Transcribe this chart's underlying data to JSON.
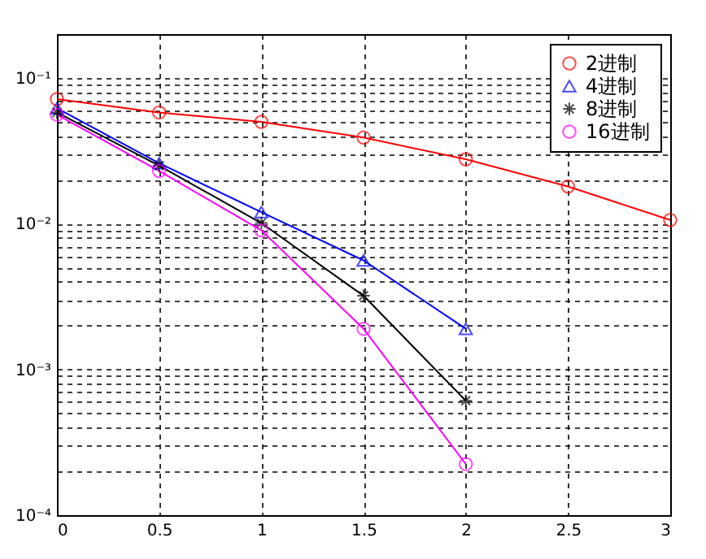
{
  "chart_data": {
    "type": "line",
    "log": "y",
    "grid": true,
    "legend": "top right",
    "line_style": "solid",
    "xlim": [
      0,
      3
    ],
    "xticks": [
      0,
      0.5,
      1,
      1.5,
      2,
      2.5,
      3
    ],
    "ylim": [
      0.0001,
      0.2
    ],
    "yticks": [
      {
        "value": 0.0001,
        "label": "10⁻⁴"
      },
      {
        "value": 0.0002,
        "label": null
      },
      {
        "value": 0.0003,
        "label": null
      },
      {
        "value": 0.0004,
        "label": null
      },
      {
        "value": 0.0005,
        "label": null
      },
      {
        "value": 0.0006,
        "label": null
      },
      {
        "value": 0.0007,
        "label": null
      },
      {
        "value": 0.0008,
        "label": null
      },
      {
        "value": 0.0009,
        "label": null
      },
      {
        "value": 0.001,
        "label": "10⁻³"
      },
      {
        "value": 0.002,
        "label": null
      },
      {
        "value": 0.003,
        "label": null
      },
      {
        "value": 0.004,
        "label": null
      },
      {
        "value": 0.005,
        "label": null
      },
      {
        "value": 0.006,
        "label": null
      },
      {
        "value": 0.007,
        "label": null
      },
      {
        "value": 0.008,
        "label": null
      },
      {
        "value": 0.009,
        "label": null
      },
      {
        "value": 0.01,
        "label": "10⁻²"
      },
      {
        "value": 0.02,
        "label": null
      },
      {
        "value": 0.03,
        "label": null
      },
      {
        "value": 0.04,
        "label": null
      },
      {
        "value": 0.05,
        "label": null
      },
      {
        "value": 0.06,
        "label": null
      },
      {
        "value": 0.07,
        "label": null
      },
      {
        "value": 0.08,
        "label": null
      },
      {
        "value": 0.09,
        "label": null
      },
      {
        "value": 0.1,
        "label": "10⁻¹"
      }
    ],
    "x": [
      0,
      0.5,
      1,
      1.5,
      2,
      2.5,
      3
    ],
    "series": [
      {
        "name": "2进制",
        "color": "#ff0000",
        "marker": "circle",
        "values": [
          0.0716,
          0.058,
          0.05,
          0.039,
          0.0277,
          0.018,
          0.0106
        ]
      },
      {
        "name": "4进制",
        "color": "#0000ff",
        "marker": "triangle",
        "values": [
          0.062,
          0.026,
          0.012,
          0.0056,
          0.0019,
          null,
          null
        ]
      },
      {
        "name": "8进制",
        "color": "#000000",
        "marker": "cross",
        "values": [
          0.058,
          0.025,
          0.0101,
          0.0032,
          0.00061,
          null,
          null
        ]
      },
      {
        "name": "16进制",
        "color": "#ff00ff",
        "marker": "circle",
        "values": [
          0.056,
          0.023,
          0.009,
          0.0019,
          0.000224,
          null,
          null
        ]
      }
    ]
  }
}
